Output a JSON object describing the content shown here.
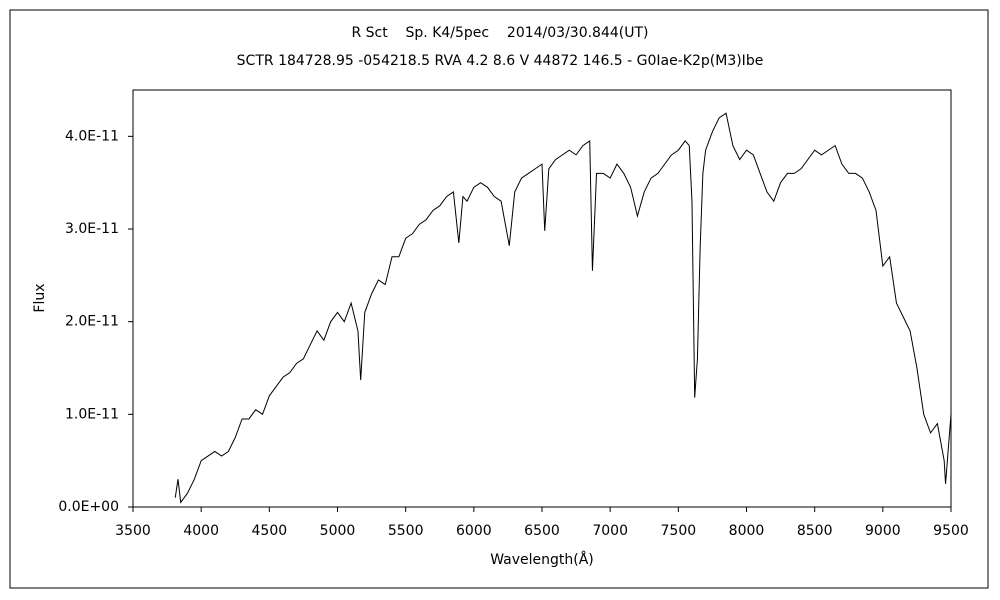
{
  "chart_data": {
    "type": "line",
    "title": "R Sct    Sp. K4/5pec    2014/03/30.844(UT)",
    "subtitle": "SCTR 184728.95 -054218.5 RVA 4.2 8.6 V 44872 146.5 - G0Iae-K2p(M3)Ibe",
    "x_label": "Wavelength(Å)",
    "y_label": "Flux",
    "xlim": [
      3500,
      9500
    ],
    "xticks": [
      3500,
      4000,
      4500,
      5000,
      5500,
      6000,
      6500,
      7000,
      7500,
      8000,
      8500,
      9000,
      9500
    ],
    "ylim": [
      0,
      4.5e-11
    ],
    "yticks": [
      {
        "value": 0,
        "label": "0.0E+00"
      },
      {
        "value": 1e-11,
        "label": "1.0E-11"
      },
      {
        "value": 2e-11,
        "label": "2.0E-11"
      },
      {
        "value": 3e-11,
        "label": "3.0E-11"
      },
      {
        "value": 4e-11,
        "label": "4.0E-11"
      }
    ],
    "grid": false,
    "series": [
      {
        "color": "#000000",
        "x": [
          3810,
          3830,
          3850,
          3900,
          3950,
          4000,
          4050,
          4100,
          4150,
          4200,
          4250,
          4300,
          4350,
          4400,
          4450,
          4500,
          4550,
          4600,
          4650,
          4700,
          4750,
          4800,
          4850,
          4900,
          4950,
          5000,
          5050,
          5100,
          5150,
          5170,
          5200,
          5250,
          5300,
          5350,
          5400,
          5450,
          5500,
          5550,
          5600,
          5650,
          5700,
          5750,
          5800,
          5850,
          5890,
          5920,
          5950,
          6000,
          6050,
          6100,
          6150,
          6200,
          6260,
          6300,
          6350,
          6400,
          6450,
          6500,
          6520,
          6550,
          6600,
          6650,
          6700,
          6750,
          6800,
          6850,
          6870,
          6900,
          6950,
          7000,
          7050,
          7100,
          7150,
          7200,
          7250,
          7300,
          7350,
          7400,
          7450,
          7500,
          7550,
          7580,
          7600,
          7620,
          7640,
          7660,
          7680,
          7700,
          7750,
          7800,
          7850,
          7900,
          7950,
          8000,
          8050,
          8100,
          8150,
          8200,
          8250,
          8300,
          8350,
          8400,
          8450,
          8500,
          8550,
          8600,
          8650,
          8700,
          8750,
          8800,
          8850,
          8900,
          8950,
          9000,
          9050,
          9100,
          9150,
          9200,
          9250,
          9300,
          9350,
          9400,
          9450,
          9460,
          9500
        ],
        "values": [
          1e-12,
          3e-12,
          5e-13,
          1.5e-12,
          3e-12,
          5e-12,
          5.5e-12,
          6e-12,
          5.5e-12,
          6e-12,
          7.5e-12,
          9.5e-12,
          9.5e-12,
          1.05e-11,
          1e-11,
          1.2e-11,
          1.3e-11,
          1.4e-11,
          1.45e-11,
          1.55e-11,
          1.6e-11,
          1.75e-11,
          1.9e-11,
          1.8e-11,
          2e-11,
          2.1e-11,
          2e-11,
          2.2e-11,
          1.9e-11,
          1.37e-11,
          2.1e-11,
          2.3e-11,
          2.45e-11,
          2.4e-11,
          2.7e-11,
          2.7e-11,
          2.9e-11,
          2.95e-11,
          3.05e-11,
          3.1e-11,
          3.2e-11,
          3.25e-11,
          3.35e-11,
          3.4e-11,
          2.85e-11,
          3.35e-11,
          3.3e-11,
          3.45e-11,
          3.5e-11,
          3.45e-11,
          3.35e-11,
          3.3e-11,
          2.82e-11,
          3.4e-11,
          3.55e-11,
          3.6e-11,
          3.65e-11,
          3.7e-11,
          2.98e-11,
          3.65e-11,
          3.75e-11,
          3.8e-11,
          3.85e-11,
          3.8e-11,
          3.9e-11,
          3.95e-11,
          2.55e-11,
          3.6e-11,
          3.6e-11,
          3.55e-11,
          3.7e-11,
          3.6e-11,
          3.45e-11,
          3.14e-11,
          3.4e-11,
          3.55e-11,
          3.6e-11,
          3.7e-11,
          3.8e-11,
          3.85e-11,
          3.95e-11,
          3.9e-11,
          3.3e-11,
          1.18e-11,
          1.6e-11,
          2.8e-11,
          3.6e-11,
          3.85e-11,
          4.05e-11,
          4.2e-11,
          4.25e-11,
          3.9e-11,
          3.75e-11,
          3.85e-11,
          3.8e-11,
          3.6e-11,
          3.4e-11,
          3.3e-11,
          3.5e-11,
          3.6e-11,
          3.6e-11,
          3.65e-11,
          3.75e-11,
          3.85e-11,
          3.8e-11,
          3.85e-11,
          3.9e-11,
          3.7e-11,
          3.6e-11,
          3.6e-11,
          3.55e-11,
          3.4e-11,
          3.2e-11,
          2.6e-11,
          2.7e-11,
          2.2e-11,
          2.05e-11,
          1.9e-11,
          1.5e-11,
          1e-11,
          8e-12,
          9e-12,
          5e-12,
          2.5e-12,
          1e-11
        ]
      }
    ]
  }
}
